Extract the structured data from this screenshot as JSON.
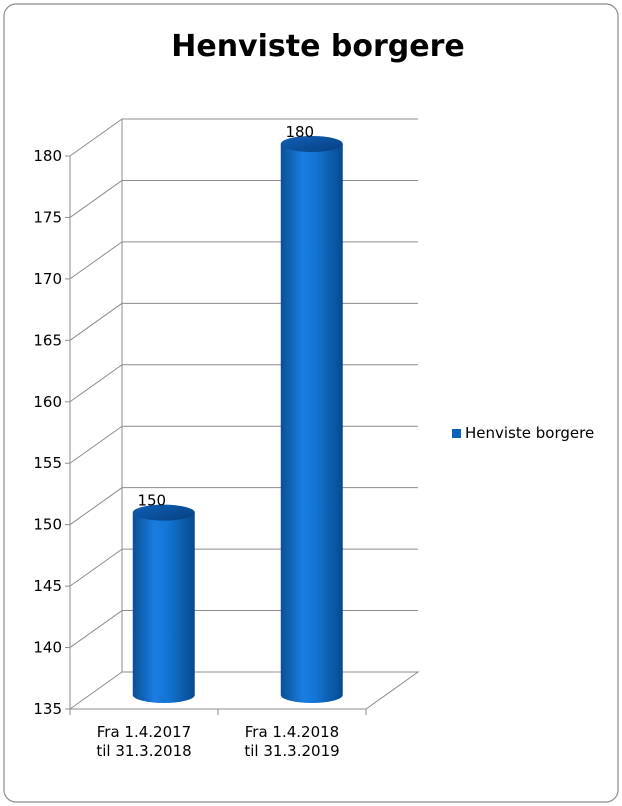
{
  "chart_data": {
    "type": "bar",
    "title": "Henviste borgere",
    "categories": [
      "Fra 1.4.2017\ntil 31.3.2018",
      "Fra 1.4.2018\ntil 31.3.2019"
    ],
    "series": [
      {
        "name": "Henviste borgere",
        "values": [
          150,
          180
        ],
        "color": "#0a63b8"
      }
    ],
    "data_labels": [
      "150",
      "180"
    ],
    "ylim": [
      135,
      180
    ],
    "yticks": [
      135,
      140,
      145,
      150,
      155,
      160,
      165,
      170,
      175,
      180
    ],
    "bar_shape": "3d-cylinder",
    "grid": true,
    "legend_position": "right"
  }
}
